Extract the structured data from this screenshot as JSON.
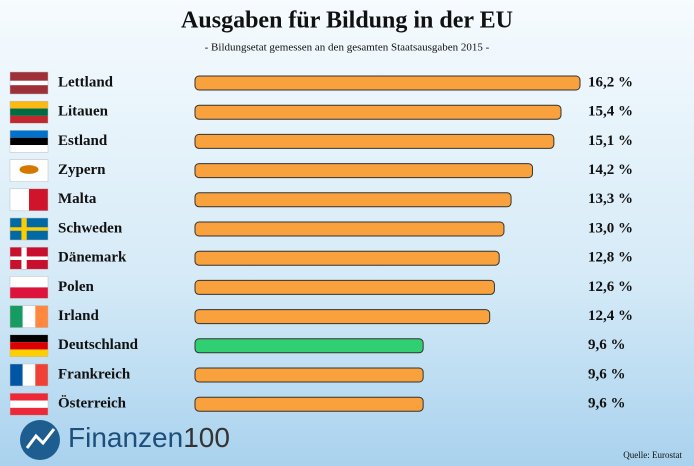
{
  "chart_data": {
    "type": "hbar",
    "title": "Ausgaben für Bildung in der EU",
    "subtitle": "- Bildungsetat gemessen an den gesamten Staatsausgaben 2015 -",
    "categories": [
      "Lettland",
      "Litauen",
      "Estland",
      "Zypern",
      "Malta",
      "Schweden",
      "Dänemark",
      "Polen",
      "Irland",
      "Deutschland",
      "Frankreich",
      "Österreich"
    ],
    "values": [
      16.2,
      15.4,
      15.1,
      14.2,
      13.3,
      13.0,
      12.8,
      12.6,
      12.4,
      9.6,
      9.6,
      9.6
    ],
    "value_labels": [
      "16,2 %",
      "15,4 %",
      "15,1 %",
      "14,2 %",
      "13,3 %",
      "13,0 %",
      "12,8 %",
      "12,6 %",
      "12,4 %",
      "9,6 %",
      "9,6 %",
      "9,6 %"
    ],
    "colors": [
      "#f9a13c",
      "#f9a13c",
      "#f9a13c",
      "#f9a13c",
      "#f9a13c",
      "#f9a13c",
      "#f9a13c",
      "#f9a13c",
      "#f9a13c",
      "#2fcf72",
      "#f9a13c",
      "#f9a13c"
    ],
    "source": "Quelle: Eurostat",
    "logo_text": "Finanzen",
    "logo_number": "100"
  }
}
